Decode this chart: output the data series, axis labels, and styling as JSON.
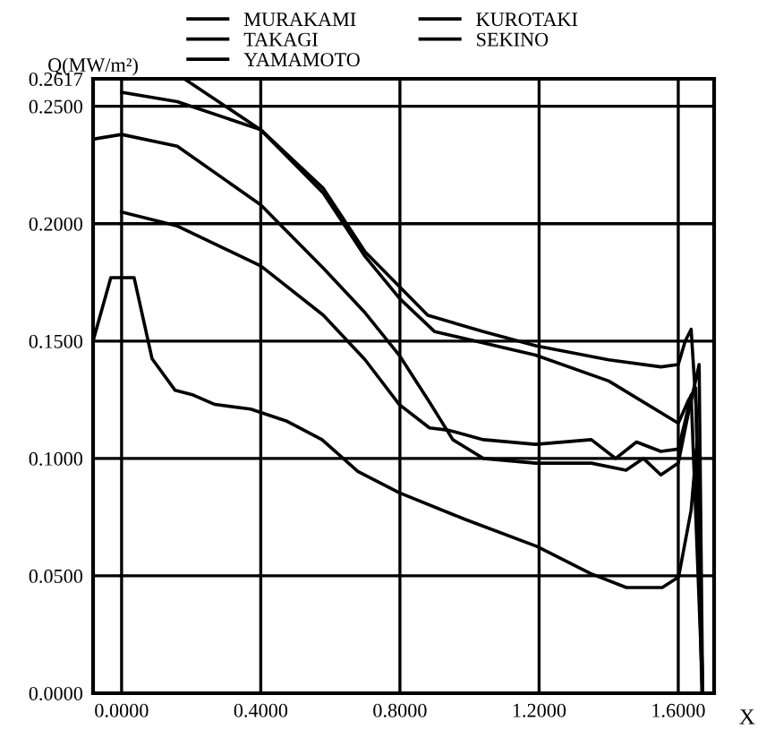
{
  "chart_data": {
    "type": "line",
    "ylabel": "Q(MW/m²)",
    "xlabel": "X",
    "xlim": [
      -0.082,
      1.703
    ],
    "ylim": [
      0,
      0.2617
    ],
    "xticks": [
      {
        "value": 0,
        "label": "0.0000"
      },
      {
        "value": 0.4,
        "label": "0.4000"
      },
      {
        "value": 0.8,
        "label": "0.8000"
      },
      {
        "value": 1.2,
        "label": "1.2000"
      },
      {
        "value": 1.6,
        "label": "1.6000"
      }
    ],
    "yticks": [
      {
        "value": 0,
        "label": "0.0000"
      },
      {
        "value": 0.05,
        "label": "0.0500"
      },
      {
        "value": 0.1,
        "label": "0.1000"
      },
      {
        "value": 0.15,
        "label": "0.1500"
      },
      {
        "value": 0.2,
        "label": "0.2000"
      },
      {
        "value": 0.25,
        "label": "0.2500"
      },
      {
        "value": 0.2617,
        "label": "0.2617"
      }
    ],
    "grid": true,
    "legend": "top",
    "line_style": "solid",
    "marker": "none",
    "series": [
      {
        "name": "MURAKAMI",
        "color": "#000000",
        "x": [
          0.18,
          0.4,
          0.58,
          0.7,
          0.8,
          0.88,
          1.04,
          1.19,
          1.4,
          1.55,
          1.6,
          1.62,
          1.637,
          1.652,
          1.67
        ],
        "values": [
          0.2617,
          0.24,
          0.215,
          0.188,
          0.173,
          0.161,
          0.154,
          0.148,
          0.142,
          0.139,
          0.14,
          0.15,
          0.155,
          0.12,
          0.0
        ]
      },
      {
        "name": "TAKAGI",
        "color": "#000000",
        "x": [
          0.0,
          0.16,
          0.4,
          0.58,
          0.7,
          0.8,
          0.9,
          1.19,
          1.4,
          1.6,
          1.63,
          1.65,
          1.67
        ],
        "values": [
          0.256,
          0.252,
          0.24,
          0.213,
          0.186,
          0.168,
          0.154,
          0.144,
          0.133,
          0.115,
          0.125,
          0.13,
          0.0
        ]
      },
      {
        "name": "YAMAMOTO",
        "color": "#000000",
        "x": [
          -0.082,
          0.0,
          0.16,
          0.4,
          0.58,
          0.7,
          0.798,
          0.885,
          0.952,
          1.04,
          1.19,
          1.35,
          1.45,
          1.5,
          1.55,
          1.6,
          1.63,
          1.66,
          1.67
        ],
        "values": [
          0.236,
          0.238,
          0.233,
          0.208,
          0.181,
          0.162,
          0.144,
          0.124,
          0.108,
          0.1,
          0.098,
          0.098,
          0.095,
          0.1,
          0.093,
          0.098,
          0.12,
          0.14,
          0.0
        ]
      },
      {
        "name": "KUROTAKI",
        "color": "#000000",
        "x": [
          0.0,
          0.16,
          0.4,
          0.58,
          0.7,
          0.798,
          0.885,
          0.94,
          1.04,
          1.19,
          1.35,
          1.42,
          1.48,
          1.55,
          1.6,
          1.62,
          1.637,
          1.67
        ],
        "values": [
          0.205,
          0.199,
          0.182,
          0.161,
          0.142,
          0.123,
          0.113,
          0.112,
          0.108,
          0.106,
          0.108,
          0.1,
          0.107,
          0.103,
          0.104,
          0.116,
          0.127,
          0.0
        ]
      },
      {
        "name": "SEKINO",
        "color": "#000000",
        "x": [
          -0.082,
          -0.031,
          0.036,
          0.0875,
          0.154,
          0.206,
          0.268,
          0.371,
          0.473,
          0.576,
          0.679,
          0.798,
          0.988,
          1.194,
          1.348,
          1.451,
          1.554,
          1.601,
          1.637,
          1.652,
          1.668
        ],
        "values": [
          0.15,
          0.177,
          0.177,
          0.1425,
          0.129,
          0.127,
          0.123,
          0.121,
          0.116,
          0.108,
          0.0945,
          0.0854,
          0.074,
          0.0625,
          0.051,
          0.045,
          0.045,
          0.0495,
          0.078,
          0.104,
          0.0
        ]
      }
    ]
  }
}
